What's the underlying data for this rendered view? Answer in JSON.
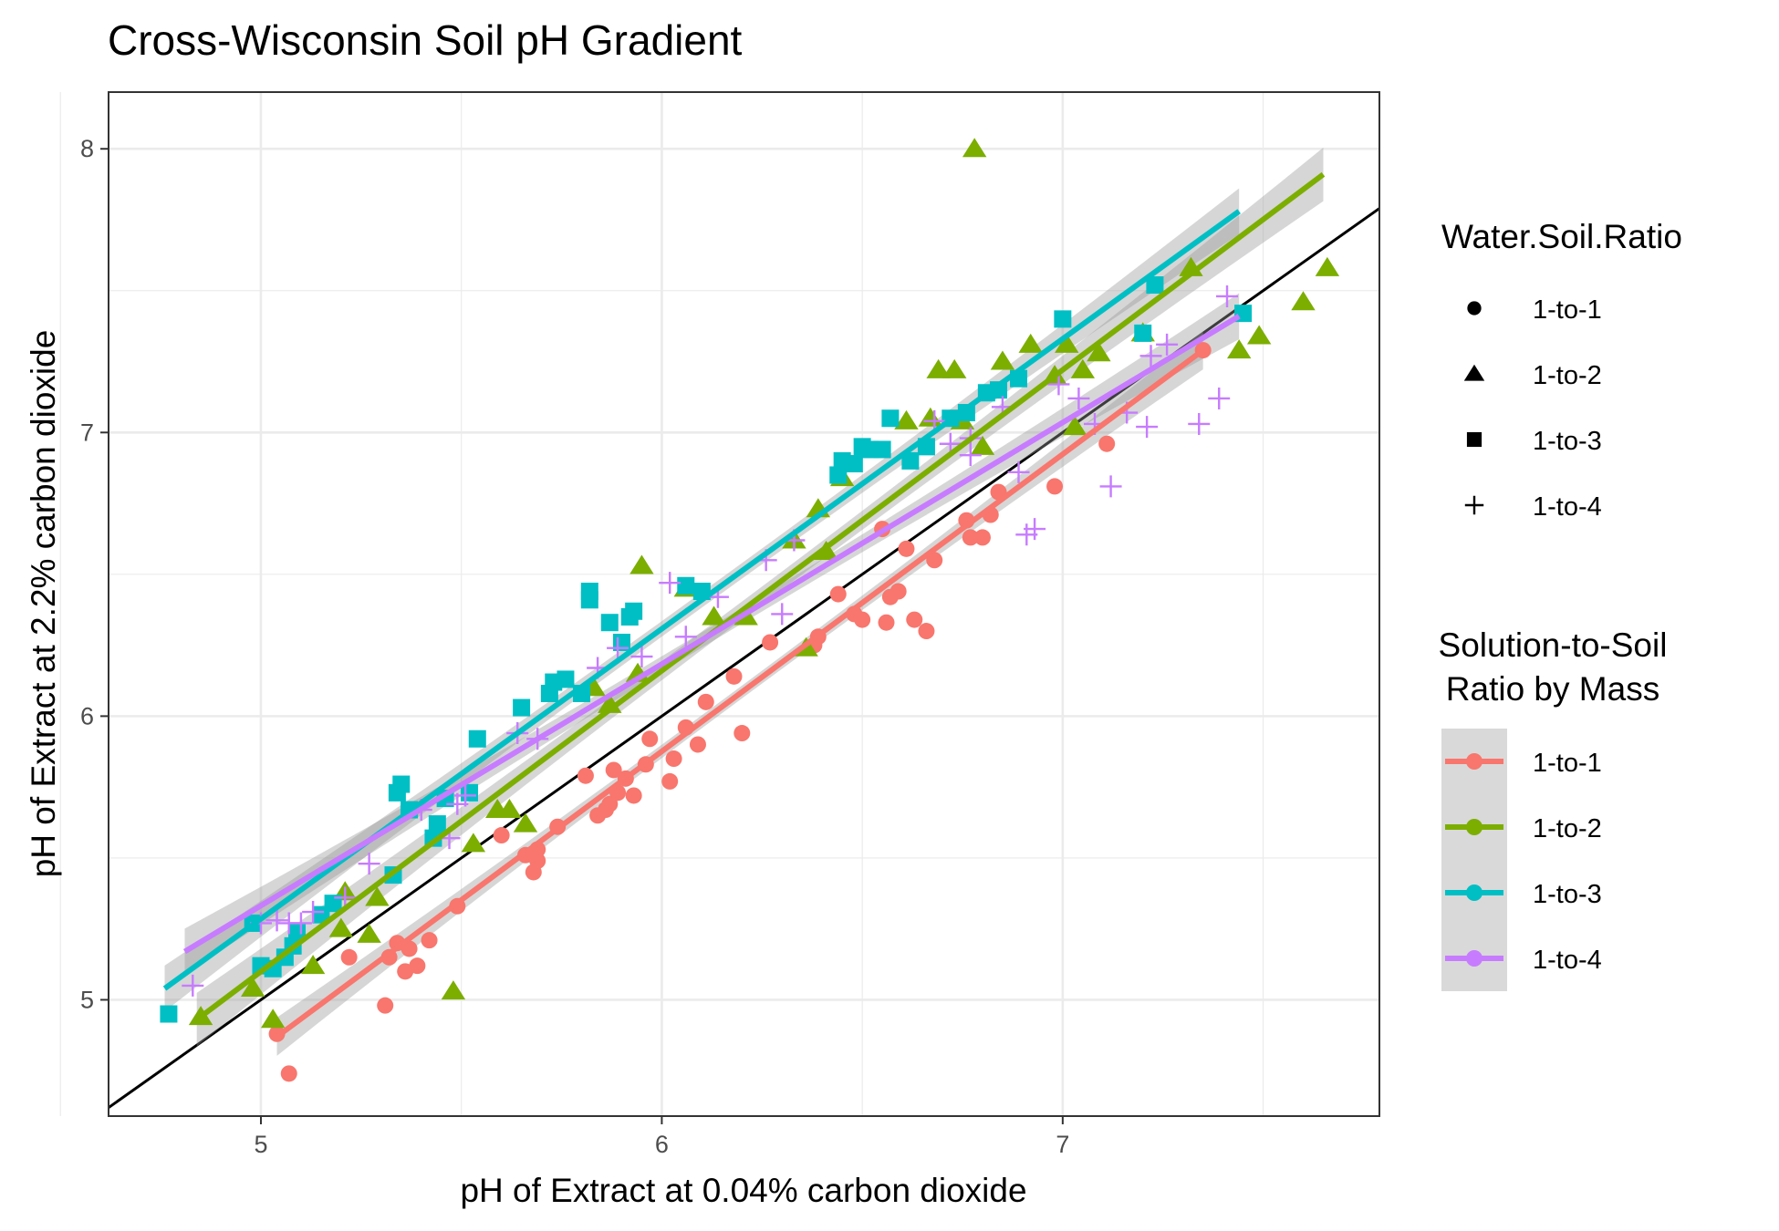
{
  "chart_data": {
    "type": "scatter",
    "title": "Cross-Wisconsin Soil pH Gradient",
    "xlabel": "pH of Extract at 0.04% carbon dioxide",
    "ylabel": "pH of Extract at 2.2% carbon dioxide",
    "xlim": [
      4.62,
      7.79
    ],
    "ylim": [
      4.59,
      8.2
    ],
    "x_ticks": [
      "5",
      "6",
      "7"
    ],
    "y_ticks": [
      "5",
      "6",
      "7",
      "8"
    ],
    "grid": true,
    "reference_line": {
      "slope": 1,
      "intercept": 0
    },
    "legends": [
      {
        "title": "Water.Soil.Ratio",
        "entries": [
          {
            "label": "1-to-1",
            "shape": "circle"
          },
          {
            "label": "1-to-2",
            "shape": "triangle"
          },
          {
            "label": "1-to-3",
            "shape": "square"
          },
          {
            "label": "1-to-4",
            "shape": "plus"
          }
        ]
      },
      {
        "title_lines": [
          "Solution-to-Soil",
          "Ratio by Mass"
        ],
        "entries": [
          "1-to-1",
          "1-to-2",
          "1-to-3",
          "1-to-4"
        ]
      }
    ],
    "series": [
      {
        "name": "1-to-1",
        "shape": "circle",
        "color": "#F8766D",
        "fit": {
          "x": [
            5.04,
            7.35
          ],
          "y": [
            4.87,
            7.29
          ],
          "band": 0.05
        },
        "points": [
          [
            5.07,
            4.74
          ],
          [
            5.04,
            4.88
          ],
          [
            5.22,
            5.15
          ],
          [
            5.31,
            4.98
          ],
          [
            5.32,
            5.15
          ],
          [
            5.34,
            5.2
          ],
          [
            5.36,
            5.1
          ],
          [
            5.37,
            5.18
          ],
          [
            5.39,
            5.12
          ],
          [
            5.42,
            5.21
          ],
          [
            5.49,
            5.33
          ],
          [
            5.6,
            5.58
          ],
          [
            5.66,
            5.51
          ],
          [
            5.68,
            5.45
          ],
          [
            5.69,
            5.49
          ],
          [
            5.69,
            5.53
          ],
          [
            5.74,
            5.61
          ],
          [
            5.81,
            5.79
          ],
          [
            5.84,
            5.65
          ],
          [
            5.86,
            5.67
          ],
          [
            5.87,
            5.69
          ],
          [
            5.88,
            5.81
          ],
          [
            5.89,
            5.73
          ],
          [
            5.91,
            5.78
          ],
          [
            5.93,
            5.72
          ],
          [
            5.96,
            5.83
          ],
          [
            5.97,
            5.92
          ],
          [
            6.02,
            5.77
          ],
          [
            6.03,
            5.85
          ],
          [
            6.06,
            5.96
          ],
          [
            6.09,
            5.9
          ],
          [
            6.11,
            6.05
          ],
          [
            6.18,
            6.14
          ],
          [
            6.2,
            5.94
          ],
          [
            6.27,
            6.26
          ],
          [
            6.38,
            6.25
          ],
          [
            6.39,
            6.28
          ],
          [
            6.44,
            6.43
          ],
          [
            6.48,
            6.36
          ],
          [
            6.5,
            6.34
          ],
          [
            6.55,
            6.66
          ],
          [
            6.56,
            6.33
          ],
          [
            6.57,
            6.42
          ],
          [
            6.59,
            6.44
          ],
          [
            6.61,
            6.59
          ],
          [
            6.63,
            6.34
          ],
          [
            6.66,
            6.3
          ],
          [
            6.68,
            6.55
          ],
          [
            6.76,
            6.69
          ],
          [
            6.77,
            6.63
          ],
          [
            6.8,
            6.63
          ],
          [
            6.82,
            6.71
          ],
          [
            6.84,
            6.79
          ],
          [
            6.98,
            6.81
          ],
          [
            7.11,
            6.96
          ],
          [
            7.35,
            7.29
          ]
        ]
      },
      {
        "name": "1-to-2",
        "shape": "triangle",
        "color": "#7CAE00",
        "fit": {
          "x": [
            4.84,
            7.65
          ],
          "y": [
            4.93,
            7.91
          ],
          "band": 0.07
        },
        "points": [
          [
            4.85,
            4.94
          ],
          [
            4.98,
            5.04
          ],
          [
            5.03,
            4.93
          ],
          [
            5.13,
            5.12
          ],
          [
            5.2,
            5.25
          ],
          [
            5.21,
            5.38
          ],
          [
            5.27,
            5.23
          ],
          [
            5.29,
            5.36
          ],
          [
            5.48,
            5.03
          ],
          [
            5.53,
            5.55
          ],
          [
            5.59,
            5.67
          ],
          [
            5.62,
            5.67
          ],
          [
            5.66,
            5.62
          ],
          [
            5.83,
            6.1
          ],
          [
            5.87,
            6.04
          ],
          [
            5.94,
            6.15
          ],
          [
            5.95,
            6.53
          ],
          [
            6.06,
            6.45
          ],
          [
            6.13,
            6.35
          ],
          [
            6.21,
            6.35
          ],
          [
            6.33,
            6.62
          ],
          [
            6.36,
            6.24
          ],
          [
            6.39,
            6.73
          ],
          [
            6.41,
            6.58
          ],
          [
            6.45,
            6.84
          ],
          [
            6.61,
            7.04
          ],
          [
            6.67,
            7.05
          ],
          [
            6.69,
            7.22
          ],
          [
            6.73,
            7.22
          ],
          [
            6.75,
            7.04
          ],
          [
            6.78,
            8.0
          ],
          [
            6.8,
            6.95
          ],
          [
            6.85,
            7.25
          ],
          [
            6.92,
            7.31
          ],
          [
            6.98,
            7.2
          ],
          [
            7.01,
            7.31
          ],
          [
            7.03,
            7.02
          ],
          [
            7.05,
            7.22
          ],
          [
            7.09,
            7.28
          ],
          [
            7.2,
            7.35
          ],
          [
            7.32,
            7.58
          ],
          [
            7.44,
            7.29
          ],
          [
            7.49,
            7.34
          ],
          [
            7.6,
            7.46
          ],
          [
            7.66,
            7.58
          ]
        ]
      },
      {
        "name": "1-to-3",
        "shape": "square",
        "color": "#00BFC4",
        "fit": {
          "x": [
            4.76,
            7.44
          ],
          "y": [
            5.04,
            7.78
          ],
          "band": 0.06
        },
        "points": [
          [
            4.77,
            4.95
          ],
          [
            4.98,
            5.27
          ],
          [
            5.0,
            5.12
          ],
          [
            5.03,
            5.11
          ],
          [
            5.06,
            5.15
          ],
          [
            5.08,
            5.19
          ],
          [
            5.09,
            5.24
          ],
          [
            5.15,
            5.3
          ],
          [
            5.18,
            5.34
          ],
          [
            5.33,
            5.44
          ],
          [
            5.34,
            5.73
          ],
          [
            5.35,
            5.76
          ],
          [
            5.37,
            5.67
          ],
          [
            5.43,
            5.57
          ],
          [
            5.44,
            5.62
          ],
          [
            5.46,
            5.71
          ],
          [
            5.52,
            5.73
          ],
          [
            5.54,
            5.92
          ],
          [
            5.65,
            6.03
          ],
          [
            5.72,
            6.08
          ],
          [
            5.73,
            6.12
          ],
          [
            5.76,
            6.13
          ],
          [
            5.8,
            6.08
          ],
          [
            5.82,
            6.44
          ],
          [
            5.82,
            6.41
          ],
          [
            5.87,
            6.33
          ],
          [
            5.9,
            6.26
          ],
          [
            5.92,
            6.35
          ],
          [
            5.93,
            6.37
          ],
          [
            6.06,
            6.46
          ],
          [
            6.1,
            6.44
          ],
          [
            6.44,
            6.85
          ],
          [
            6.45,
            6.9
          ],
          [
            6.48,
            6.89
          ],
          [
            6.5,
            6.95
          ],
          [
            6.52,
            6.94
          ],
          [
            6.55,
            6.94
          ],
          [
            6.57,
            7.05
          ],
          [
            6.62,
            6.9
          ],
          [
            6.66,
            6.95
          ],
          [
            6.72,
            7.05
          ],
          [
            6.76,
            7.07
          ],
          [
            6.81,
            7.14
          ],
          [
            6.84,
            7.15
          ],
          [
            6.89,
            7.19
          ],
          [
            7.0,
            7.4
          ],
          [
            7.2,
            7.35
          ],
          [
            7.23,
            7.52
          ],
          [
            7.45,
            7.42
          ]
        ]
      },
      {
        "name": "1-to-4",
        "shape": "plus",
        "color": "#C77CFF",
        "fit": {
          "x": [
            4.81,
            7.44
          ],
          "y": [
            5.17,
            7.41
          ],
          "band": 0.06
        },
        "points": [
          [
            4.83,
            5.05
          ],
          [
            5.0,
            5.27
          ],
          [
            5.04,
            5.28
          ],
          [
            5.07,
            5.27
          ],
          [
            5.1,
            5.27
          ],
          [
            5.13,
            5.31
          ],
          [
            5.21,
            5.36
          ],
          [
            5.27,
            5.48
          ],
          [
            5.4,
            5.67
          ],
          [
            5.47,
            5.57
          ],
          [
            5.49,
            5.69
          ],
          [
            5.51,
            5.72
          ],
          [
            5.64,
            5.94
          ],
          [
            5.69,
            5.92
          ],
          [
            5.84,
            6.17
          ],
          [
            5.89,
            6.24
          ],
          [
            5.95,
            6.21
          ],
          [
            6.02,
            6.47
          ],
          [
            6.06,
            6.28
          ],
          [
            6.14,
            6.42
          ],
          [
            6.26,
            6.55
          ],
          [
            6.3,
            6.36
          ],
          [
            6.33,
            6.62
          ],
          [
            6.68,
            7.04
          ],
          [
            6.72,
            6.96
          ],
          [
            6.77,
            6.92
          ],
          [
            6.77,
            6.98
          ],
          [
            6.85,
            7.09
          ],
          [
            6.89,
            6.86
          ],
          [
            6.91,
            6.64
          ],
          [
            6.93,
            6.66
          ],
          [
            6.99,
            7.17
          ],
          [
            7.04,
            7.12
          ],
          [
            7.08,
            7.03
          ],
          [
            7.12,
            6.81
          ],
          [
            7.16,
            7.07
          ],
          [
            7.21,
            7.02
          ],
          [
            7.22,
            7.27
          ],
          [
            7.26,
            7.31
          ],
          [
            7.34,
            7.03
          ],
          [
            7.39,
            7.12
          ],
          [
            7.41,
            7.48
          ]
        ]
      }
    ]
  }
}
